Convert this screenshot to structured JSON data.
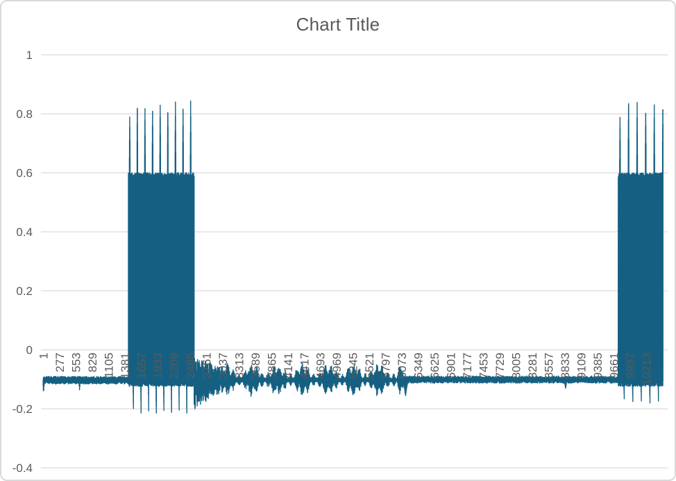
{
  "chart_data": {
    "type": "line",
    "title": "Chart Title",
    "legend": null,
    "grid": "horizontal",
    "colors": {
      "series": "#156082",
      "grid": "#d9d9d9",
      "text": "#595959",
      "border": "#d9d9d9",
      "background": "#ffffff"
    },
    "ylim": [
      -0.4,
      1
    ],
    "y_ticks": {
      "values": [
        1,
        0.8,
        0.6,
        0.4,
        0.2,
        0,
        -0.2,
        -0.4
      ],
      "labels": [
        "1",
        "0.8",
        "0.6",
        "0.4",
        "0.2",
        "0",
        "-0.2",
        "-0.4"
      ]
    },
    "x_ticks": {
      "first": 1,
      "step": 276,
      "labels": [
        "1",
        "277",
        "553",
        "829",
        "1105",
        "1381",
        "1657",
        "1933",
        "2209",
        "2485",
        "2761",
        "3037",
        "3313",
        "3589",
        "3865",
        "4141",
        "4417",
        "4693",
        "4969",
        "5245",
        "5521",
        "5797",
        "6073",
        "6349",
        "6625",
        "6901",
        "7177",
        "7453",
        "7729",
        "8005",
        "8281",
        "8557",
        "8833",
        "9109",
        "9385",
        "9661",
        "9937",
        "10213"
      ]
    },
    "x_total_points": 10500,
    "baseline": -0.1,
    "signal_segments": [
      {
        "type": "noise",
        "from": 1,
        "to": 1446,
        "center": -0.103,
        "amp": 0.013,
        "blips": [
          {
            "t": 10,
            "v": -0.145,
            "w": 14
          },
          {
            "t": 620,
            "v": -0.138,
            "w": 10
          }
        ]
      },
      {
        "type": "burst",
        "from": 1446,
        "to": 2560,
        "high": 0.588,
        "low": -0.112,
        "peak_start": 1469,
        "peak_spacing": 129,
        "peaks": [
          0.79,
          0.84,
          0.82,
          0.828,
          0.83,
          0.825,
          0.84,
          0.835,
          0.84
        ],
        "peak_halfwidth": 7,
        "trough_offset": 64,
        "trough_width": 7,
        "trough": -0.215
      },
      {
        "type": "decay",
        "from": 2560,
        "to": 3000,
        "center": -0.105,
        "amp_from": 0.082,
        "amp_to": 0.045,
        "spikes": [
          {
            "t": 2574,
            "v": -0.207,
            "w": 9
          },
          {
            "t": 2612,
            "v": -0.19,
            "w": 8
          },
          {
            "t": 2668,
            "v": -0.185,
            "w": 8
          },
          {
            "t": 2760,
            "v": -0.175,
            "w": 8
          }
        ]
      },
      {
        "type": "ripple",
        "from": 3000,
        "to": 6100,
        "center": -0.102,
        "amp_base": 0.026,
        "amp_slow": 0.018,
        "slow_period": 430,
        "amp_fast": 0.014,
        "fast_period": 97
      },
      {
        "type": "noise",
        "from": 6100,
        "to": 9740,
        "center": -0.101,
        "amp": 0.012,
        "blips": [
          {
            "t": 6140,
            "v": -0.158,
            "w": 35
          },
          {
            "t": 8850,
            "v": -0.133,
            "w": 18
          }
        ]
      },
      {
        "type": "burst",
        "from": 9740,
        "to": 10500,
        "high": 0.588,
        "low": -0.112,
        "peak_start": 9771,
        "peak_spacing": 145,
        "peaks": [
          0.79,
          0.855,
          0.835,
          0.825,
          0.83,
          0.835
        ],
        "peak_halfwidth": 7,
        "trough_offset": 72,
        "trough_width": 7,
        "trough": -0.175
      }
    ]
  }
}
